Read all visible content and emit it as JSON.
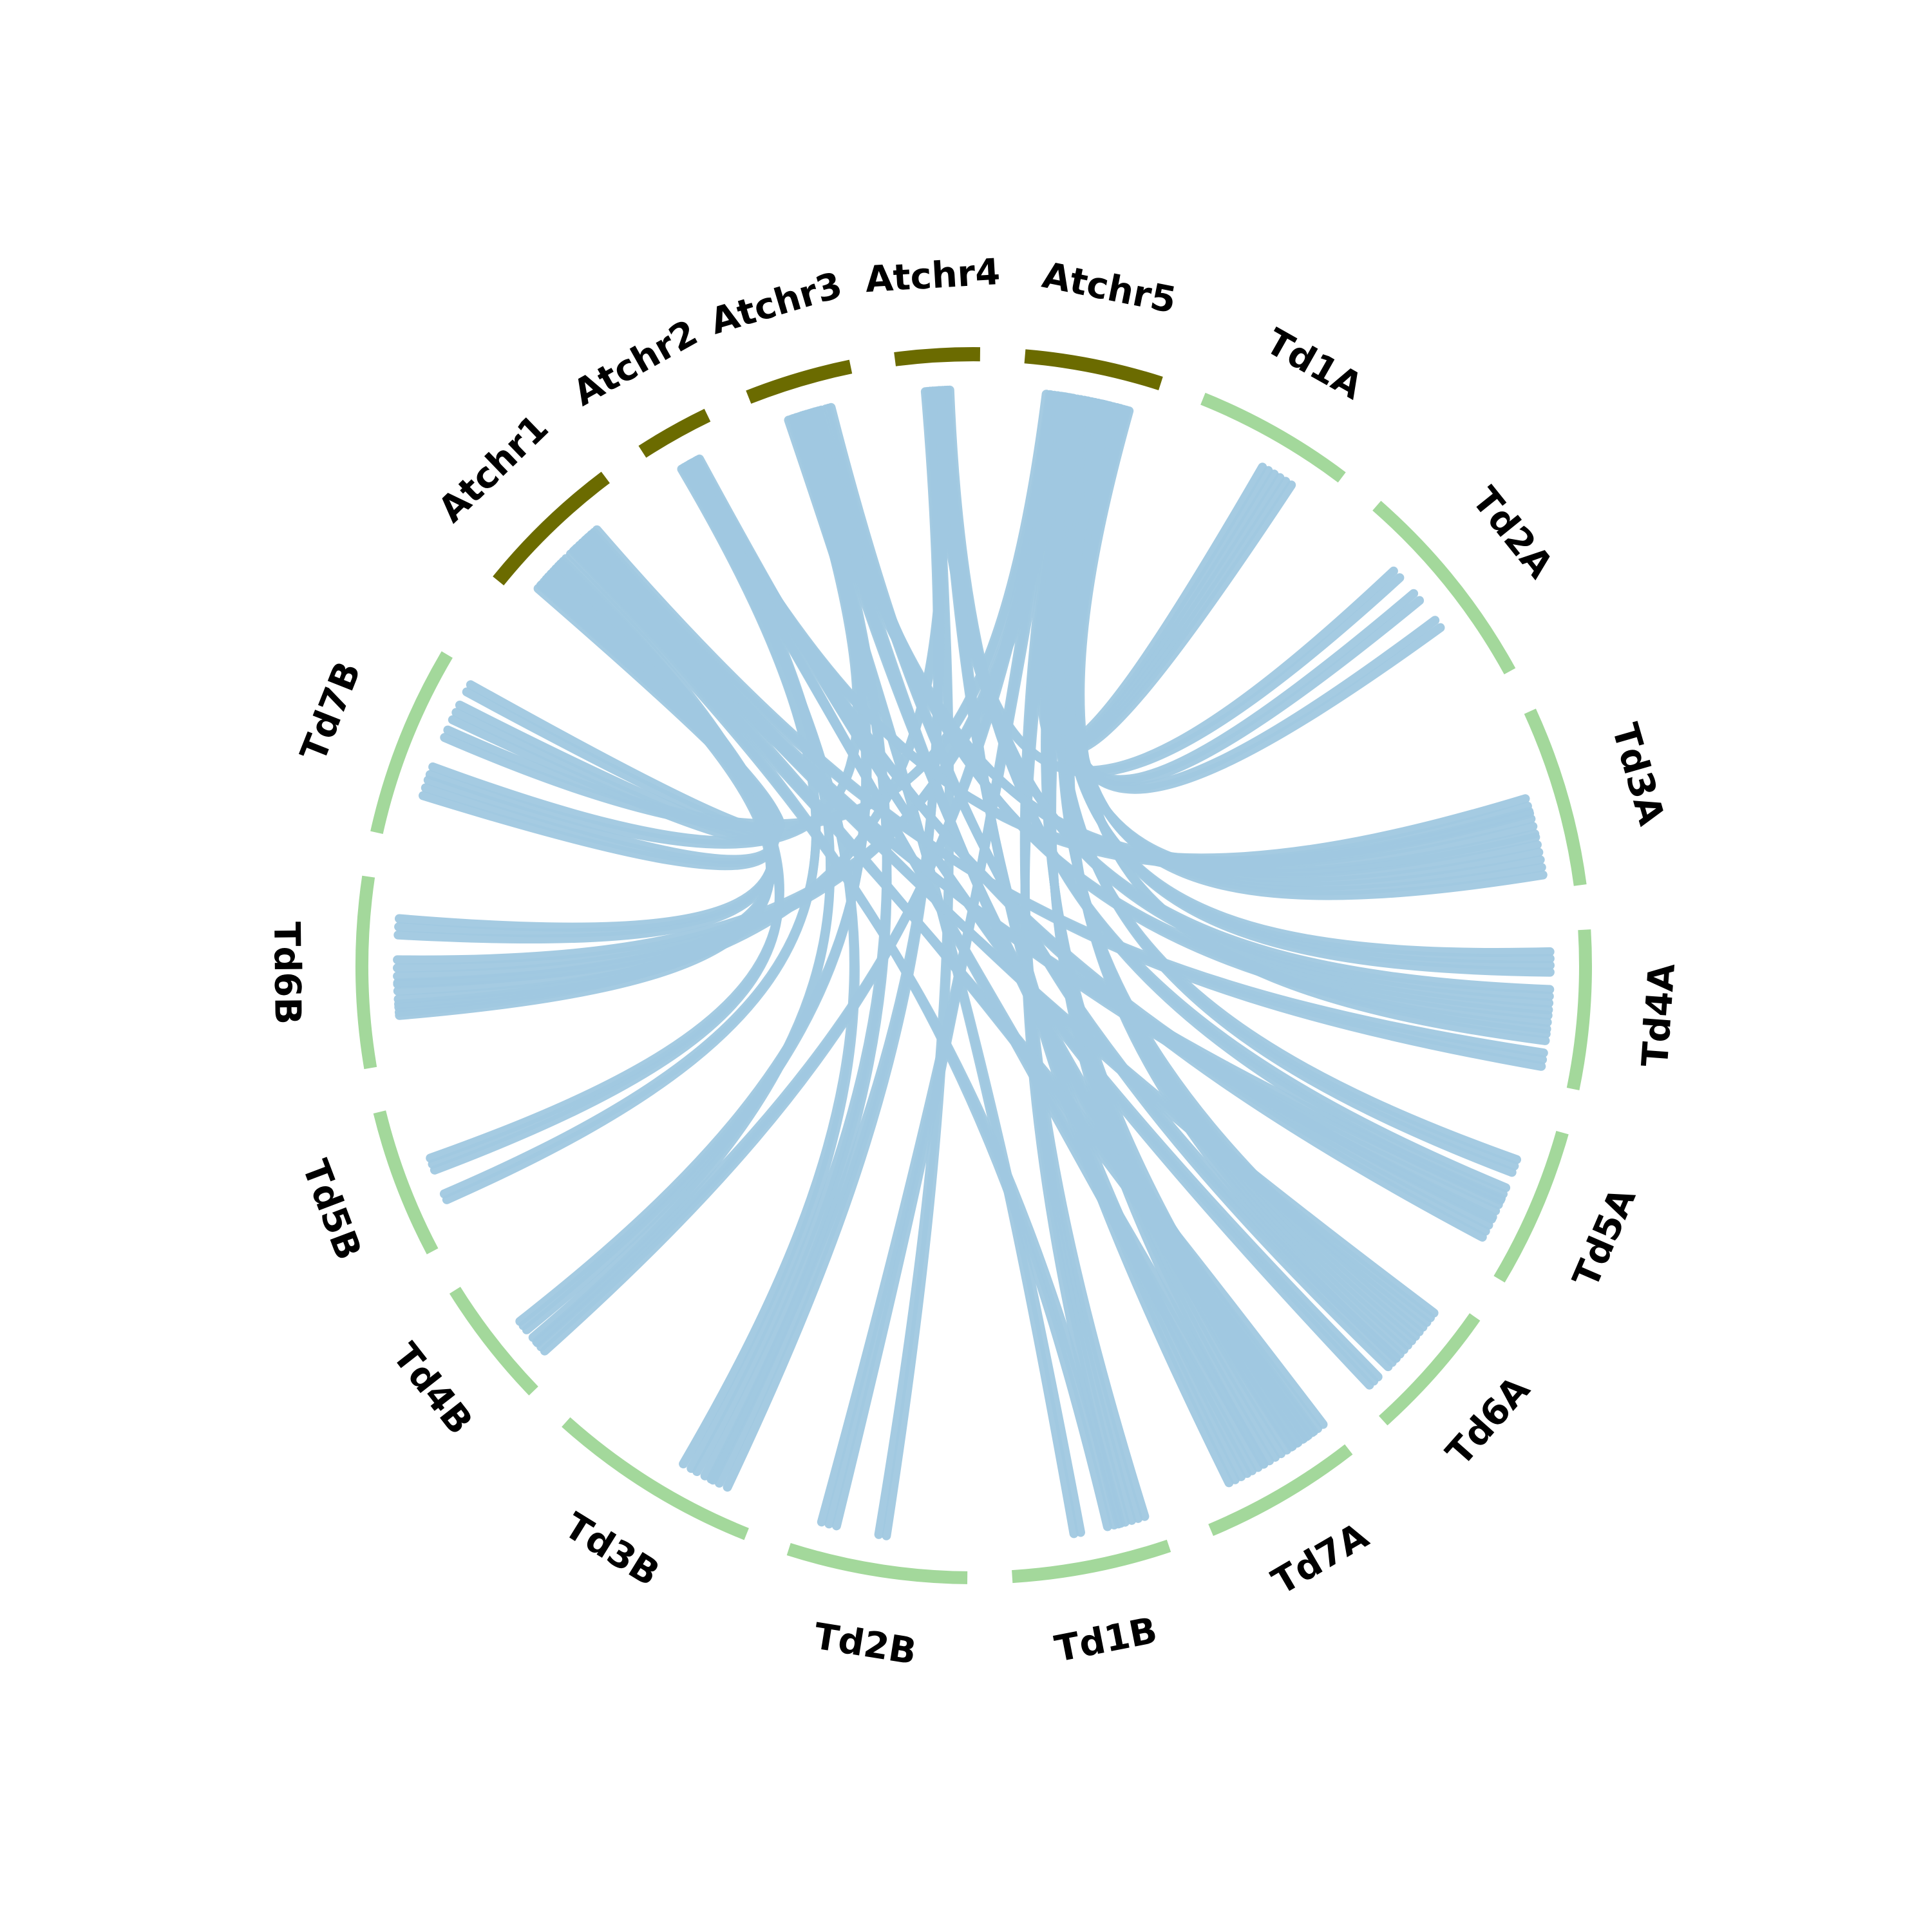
{
  "diagram": {
    "type": "circos",
    "colors": {
      "arabidopsis": "#6b6b00",
      "wheat": "#a3d89b",
      "link": "#a0c8e0",
      "label": "#000000"
    },
    "segments": [
      {
        "id": "Atchr1",
        "label": "Atchr1",
        "group": "arabidopsis"
      },
      {
        "id": "Atchr2",
        "label": "Atchr2",
        "group": "arabidopsis"
      },
      {
        "id": "Atchr3",
        "label": "Atchr3",
        "group": "arabidopsis"
      },
      {
        "id": "Atchr4",
        "label": "Atchr4",
        "group": "arabidopsis"
      },
      {
        "id": "Atchr5",
        "label": "Atchr5",
        "group": "arabidopsis"
      },
      {
        "id": "Td1A",
        "label": "Td1A",
        "group": "wheat"
      },
      {
        "id": "Td2A",
        "label": "Td2A",
        "group": "wheat"
      },
      {
        "id": "Td3A",
        "label": "Td3A",
        "group": "wheat"
      },
      {
        "id": "Td4A",
        "label": "Td4A",
        "group": "wheat"
      },
      {
        "id": "Td5A",
        "label": "Td5A",
        "group": "wheat"
      },
      {
        "id": "Td6A",
        "label": "Td6A",
        "group": "wheat"
      },
      {
        "id": "Td7A",
        "label": "Td7A",
        "group": "wheat"
      },
      {
        "id": "Td1B",
        "label": "Td1B",
        "group": "wheat"
      },
      {
        "id": "Td2B",
        "label": "Td2B",
        "group": "wheat"
      },
      {
        "id": "Td3B",
        "label": "Td3B",
        "group": "wheat"
      },
      {
        "id": "Td4B",
        "label": "Td4B",
        "group": "wheat"
      },
      {
        "id": "Td5B",
        "label": "Td5B",
        "group": "wheat"
      },
      {
        "id": "Td6B",
        "label": "Td6B",
        "group": "wheat"
      },
      {
        "id": "Td7B",
        "label": "Td7B",
        "group": "wheat"
      }
    ],
    "links": [
      {
        "from": "Atchr5",
        "p": 0.55,
        "to": "Td1A",
        "q": 0.65,
        "n": 6
      },
      {
        "from": "Atchr5",
        "p": 0.75,
        "to": "Td2A",
        "q": 0.45,
        "n": 2
      },
      {
        "from": "Atchr5",
        "p": 0.65,
        "to": "Td2A",
        "q": 0.62,
        "n": 2
      },
      {
        "from": "Atchr5",
        "p": 0.7,
        "to": "Td3A",
        "q": 0.8,
        "n": 6
      },
      {
        "from": "Atchr5",
        "p": 0.6,
        "to": "Td4A",
        "q": 0.2,
        "n": 4
      },
      {
        "from": "Atchr5",
        "p": 0.82,
        "to": "Td4A",
        "q": 0.7,
        "n": 2
      },
      {
        "from": "Atchr5",
        "p": 0.48,
        "to": "Td5A",
        "q": 0.3,
        "n": 3
      },
      {
        "from": "Atchr5",
        "p": 0.72,
        "to": "Td6A",
        "q": 0.45,
        "n": 8
      },
      {
        "from": "Atchr5",
        "p": 0.58,
        "to": "Td7A",
        "q": 0.35,
        "n": 8
      },
      {
        "from": "Atchr5",
        "p": 0.4,
        "to": "Td1B",
        "q": 0.18,
        "n": 5
      },
      {
        "from": "Atchr5",
        "p": 0.3,
        "to": "Td2B",
        "q": 0.82,
        "n": 3
      },
      {
        "from": "Atchr5",
        "p": 0.25,
        "to": "Td4B",
        "q": 0.22,
        "n": 3
      },
      {
        "from": "Atchr5",
        "p": 0.35,
        "to": "Td6B",
        "q": 0.5,
        "n": 4
      },
      {
        "from": "Atchr5",
        "p": 0.2,
        "to": "Td7B",
        "q": 0.62,
        "n": 2
      },
      {
        "from": "Atchr4",
        "p": 0.5,
        "to": "Td2A",
        "q": 0.3,
        "n": 2
      },
      {
        "from": "Atchr4",
        "p": 0.45,
        "to": "Td4A",
        "q": 0.45,
        "n": 4
      },
      {
        "from": "Atchr4",
        "p": 0.6,
        "to": "Td5A",
        "q": 0.5,
        "n": 3
      },
      {
        "from": "Atchr4",
        "p": 0.55,
        "to": "Td7A",
        "q": 0.7,
        "n": 4
      },
      {
        "from": "Atchr4",
        "p": 0.4,
        "to": "Td2B",
        "q": 0.5,
        "n": 2
      },
      {
        "from": "Atchr4",
        "p": 0.35,
        "to": "Td3B",
        "q": 0.22,
        "n": 3
      },
      {
        "from": "Atchr4",
        "p": 0.5,
        "to": "Td6B",
        "q": 0.3,
        "n": 2
      },
      {
        "from": "Atchr3",
        "p": 0.55,
        "to": "Td3A",
        "q": 0.6,
        "n": 4
      },
      {
        "from": "Atchr3",
        "p": 0.6,
        "to": "Td4A",
        "q": 0.6,
        "n": 3
      },
      {
        "from": "Atchr3",
        "p": 0.7,
        "to": "Td6A",
        "q": 0.65,
        "n": 3
      },
      {
        "from": "Atchr3",
        "p": 0.5,
        "to": "Td7A",
        "q": 0.2,
        "n": 5
      },
      {
        "from": "Atchr3",
        "p": 0.3,
        "to": "Td1B",
        "q": 0.55,
        "n": 2
      },
      {
        "from": "Atchr3",
        "p": 0.45,
        "to": "Td3B",
        "q": 0.3,
        "n": 3
      },
      {
        "from": "Atchr3",
        "p": 0.4,
        "to": "Td4B",
        "q": 0.45,
        "n": 3
      },
      {
        "from": "Atchr3",
        "p": 0.35,
        "to": "Td7B",
        "q": 0.4,
        "n": 2
      },
      {
        "from": "Atchr2",
        "p": 0.5,
        "to": "Td3A",
        "q": 0.5,
        "n": 3
      },
      {
        "from": "Atchr2",
        "p": 0.55,
        "to": "Td5A",
        "q": 0.75,
        "n": 4
      },
      {
        "from": "Atchr2",
        "p": 0.6,
        "to": "Td6A",
        "q": 0.85,
        "n": 3
      },
      {
        "from": "Atchr2",
        "p": 0.45,
        "to": "Td7A",
        "q": 0.55,
        "n": 3
      },
      {
        "from": "Atchr2",
        "p": 0.4,
        "to": "Td3B",
        "q": 0.4,
        "n": 2
      },
      {
        "from": "Atchr2",
        "p": 0.5,
        "to": "Td4B",
        "q": 0.3,
        "n": 2
      },
      {
        "from": "Atchr2",
        "p": 0.35,
        "to": "Td5B",
        "q": 0.3,
        "n": 2
      },
      {
        "from": "Atchr1",
        "p": 0.7,
        "to": "Td4A",
        "q": 0.85,
        "n": 3
      },
      {
        "from": "Atchr1",
        "p": 0.6,
        "to": "Td5A",
        "q": 0.6,
        "n": 4
      },
      {
        "from": "Atchr1",
        "p": 0.65,
        "to": "Td6A",
        "q": 0.2,
        "n": 3
      },
      {
        "from": "Atchr1",
        "p": 0.55,
        "to": "Td7A",
        "q": 0.1,
        "n": 4
      },
      {
        "from": "Atchr1",
        "p": 0.5,
        "to": "Td1B",
        "q": 0.3,
        "n": 3
      },
      {
        "from": "Atchr1",
        "p": 0.4,
        "to": "Td5B",
        "q": 0.55,
        "n": 3
      },
      {
        "from": "Atchr1",
        "p": 0.3,
        "to": "Td6B",
        "q": 0.35,
        "n": 5
      },
      {
        "from": "Atchr1",
        "p": 0.35,
        "to": "Td6B",
        "q": 0.75,
        "n": 3
      },
      {
        "from": "Atchr1",
        "p": 0.25,
        "to": "Td7B",
        "q": 0.3,
        "n": 3
      },
      {
        "from": "Atchr1",
        "p": 0.2,
        "to": "Td7B",
        "q": 0.75,
        "n": 3
      },
      {
        "from": "Atchr1",
        "p": 0.15,
        "to": "Td7B",
        "q": 0.9,
        "n": 2
      }
    ]
  }
}
